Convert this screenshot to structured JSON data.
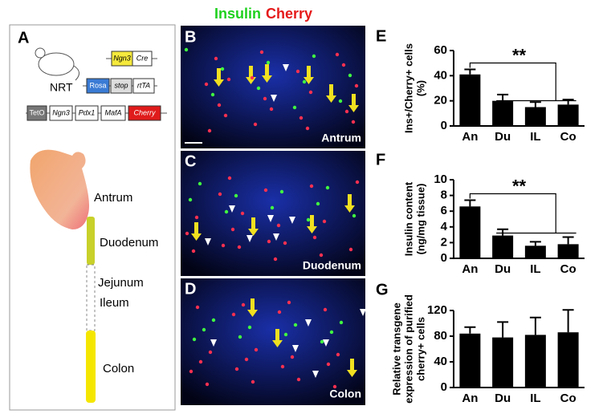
{
  "header": {
    "stain_1": "Insulin",
    "stain_2": "Cherry"
  },
  "panel_a": {
    "letter": "A",
    "mouse": "NRT",
    "construct_1": [
      "Ngn3",
      "Cre"
    ],
    "construct_2": [
      "Rosa",
      "stop",
      "rtTA"
    ],
    "construct_3": [
      "TetO",
      "Ngn3",
      "Pdx1",
      "MafA",
      "Cherry"
    ],
    "regions": [
      "Antrum",
      "Duodenum",
      "Jejunum",
      "Ileum",
      "Colon"
    ]
  },
  "micrographs": [
    {
      "letter": "B",
      "label": "Antrum"
    },
    {
      "letter": "C",
      "label": "Duodenum"
    },
    {
      "letter": "D",
      "label": "Colon"
    }
  ],
  "chart_data": [
    {
      "type": "bar",
      "panel": "E",
      "ylabel": [
        "Ins+/Cherry+ cells",
        "(%)"
      ],
      "annotation": "**",
      "categories": [
        "An",
        "Du",
        "IL",
        "Co"
      ],
      "values": [
        41,
        20,
        15,
        17
      ],
      "errors": [
        4,
        5,
        4,
        4
      ],
      "color": "#000000",
      "ylim": [
        0,
        60
      ],
      "yticks": [
        0,
        20,
        40,
        60
      ]
    },
    {
      "type": "bar",
      "panel": "F",
      "ylabel": [
        "Insulin content",
        "(ng/mg tissue)"
      ],
      "annotation": "**",
      "categories": [
        "An",
        "Du",
        "IL",
        "Co"
      ],
      "values": [
        6.6,
        2.9,
        1.6,
        1.8
      ],
      "errors": [
        0.8,
        0.8,
        0.5,
        0.9
      ],
      "color": "#000000",
      "ylim": [
        0,
        10
      ],
      "yticks": [
        0,
        2,
        4,
        6,
        8,
        10
      ]
    },
    {
      "type": "bar",
      "panel": "G",
      "ylabel": [
        "Relative transgene",
        "expression of purified",
        "cherry+ cells"
      ],
      "categories": [
        "An",
        "Du",
        "IL",
        "Co"
      ],
      "values": [
        84,
        78,
        82,
        86
      ],
      "errors": [
        10,
        24,
        27,
        35
      ],
      "color": "#000000",
      "ylim": [
        0,
        120
      ],
      "yticks": [
        0,
        40,
        80,
        120
      ]
    }
  ]
}
